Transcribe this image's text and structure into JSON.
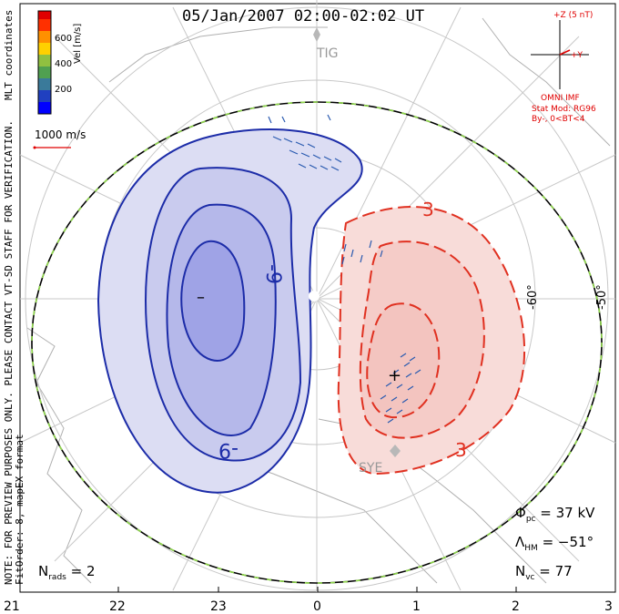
{
  "title": "05/Jan/2007 02:00-02:02 UT",
  "notes": {
    "line1": "NOTE: FOR PREVIEW PURPOSES ONLY. PLEASE CONTACT VT-SD STAFF FOR VERIFICATION.",
    "line2": "FitOrder: 8, mapEX format"
  },
  "coord_label": "MLT coordinates",
  "colorbar": {
    "label": "Vel [m/s]",
    "ticks": [
      "600",
      "400",
      "200"
    ],
    "colors": [
      "#0000ff",
      "#2040c0",
      "#3a7a9a",
      "#50a050",
      "#90c040",
      "#ffd000",
      "#ff9000",
      "#ff3000",
      "#e00000"
    ]
  },
  "scale_label": "1000 m/s",
  "stations": [
    "TIG",
    "SYE"
  ],
  "imf": {
    "z_label": "+Z (5 nT)",
    "y_label": "+Y",
    "source": "OMNI IMF",
    "stat_mod": "Stat Mod: RG96",
    "by_bt": "By-, 0<BT<4"
  },
  "contour_labels": [
    "-9",
    "-9",
    "3",
    "3"
  ],
  "extrema": {
    "min_symbol": "–",
    "max_symbol": "+"
  },
  "lat_labels": [
    "-60°",
    "-50°"
  ],
  "mlt_ticks": [
    "21",
    "22",
    "23",
    "0",
    "1",
    "2",
    "3"
  ],
  "stats": {
    "phi_sym": "Φ",
    "phi_sub": "pc",
    "phi_val": " = 37 kV",
    "lam_sym": "Λ",
    "lam_sub": "HM",
    "lam_val": " = −51°",
    "nvc_sym": "N",
    "nvc_sub": "vc",
    "nvc_val": " = 77",
    "nrads_sym": "N",
    "nrads_sub": "rads",
    "nrads_val": " = 2"
  },
  "colors": {
    "negative": "#1c2ca8",
    "positive": "#e03020",
    "neg_fill": "#c8cbef",
    "pos_fill": "#f6d3d0"
  }
}
